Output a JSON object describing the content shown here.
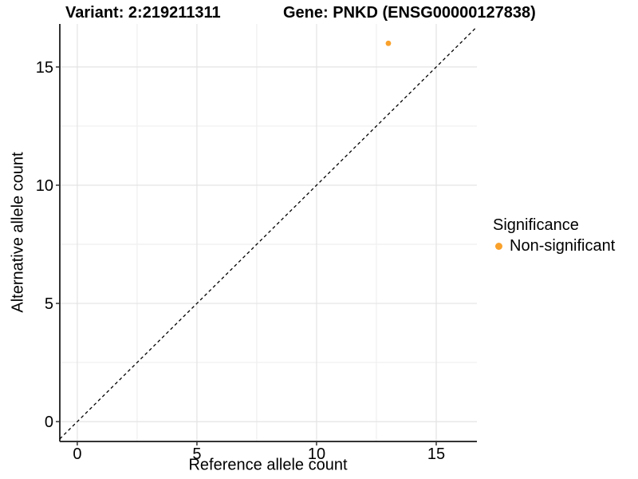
{
  "header": {
    "variant_title": "Variant: 2:219211311",
    "gene_title": "Gene: PNKD (ENSG00000127838)"
  },
  "colors": {
    "point_orange": "#F9A12B",
    "grid_major": "#E3E3E3",
    "grid_minor": "#EFEFEF",
    "axis_line": "#333333",
    "tick_mark": "#333333",
    "text": "#000000",
    "background": "#FFFFFF",
    "identity_line": "#000000"
  },
  "chart_data": {
    "type": "scatter",
    "title_left": "Variant: 2:219211311",
    "title_right": "Gene: PNKD (ENSG00000127838)",
    "xlabel": "Reference allele count",
    "ylabel": "Alternative allele count",
    "xlim": [
      -0.73,
      16.7
    ],
    "ylim": [
      -0.84,
      16.82
    ],
    "x_ticks": [
      0,
      5,
      10,
      15
    ],
    "y_ticks": [
      0,
      5,
      10,
      15
    ],
    "x_minor_ticks": [
      2.5,
      7.5,
      12.5
    ],
    "y_minor_ticks": [
      2.5,
      7.5,
      12.5
    ],
    "grid": true,
    "points": [
      {
        "x": 13,
        "y": 16,
        "series": "Non-significant"
      }
    ],
    "identity_line": {
      "slope": 1,
      "intercept": 0,
      "style": "dashed"
    },
    "legend": {
      "title": "Significance",
      "position": "right",
      "items": [
        {
          "label": "Non-significant",
          "color": "#F9A12B"
        }
      ]
    }
  }
}
